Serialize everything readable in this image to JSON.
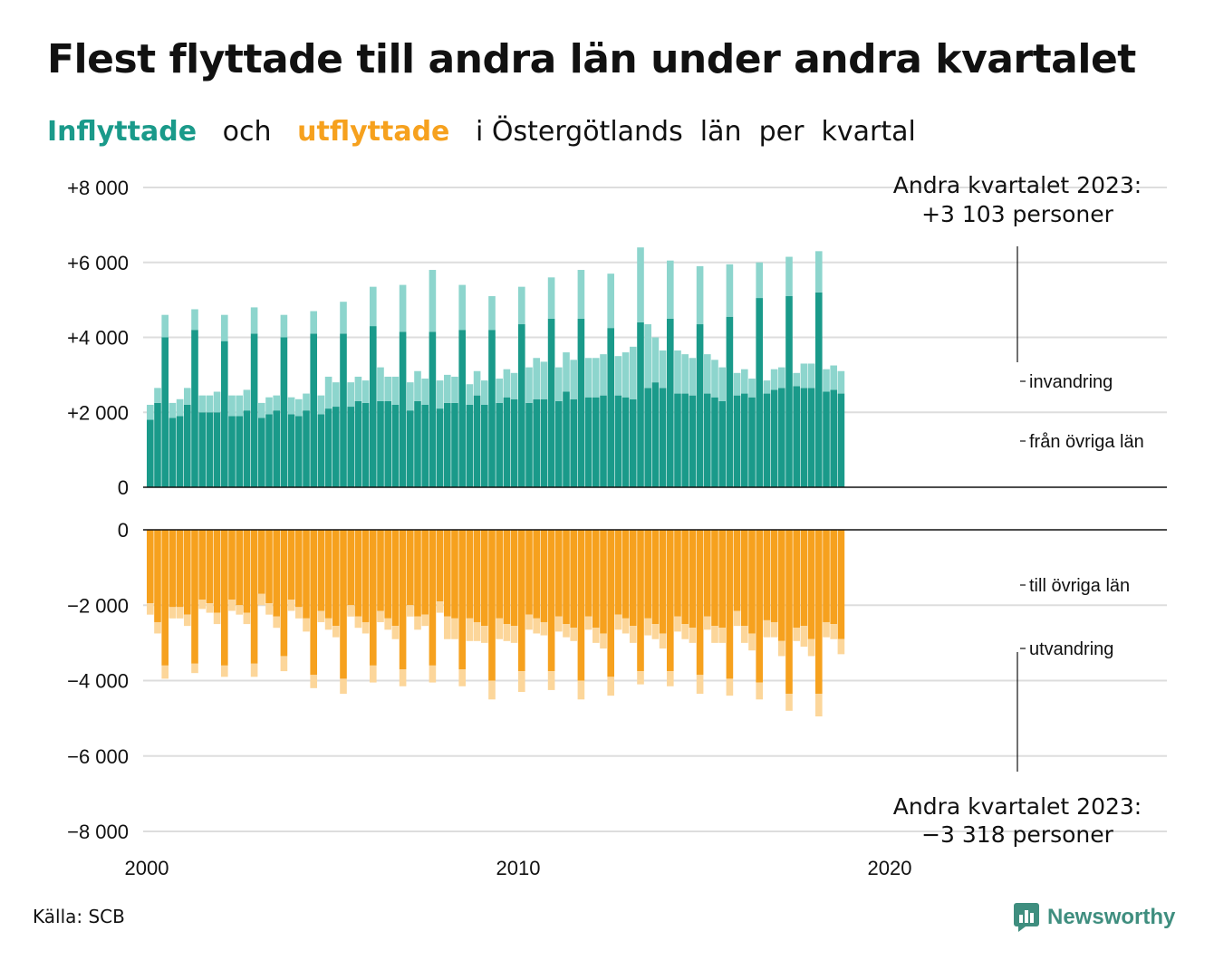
{
  "title": "Flest flyttade till andra län under andra kvartalet",
  "subtitle": {
    "in_word": "Inflyttade",
    "and": "och",
    "out_word": "utflyttade",
    "rest": "i Östergötlands  län  per  kvartal"
  },
  "colors": {
    "in_domestic": "#1a9a8a",
    "in_immigration": "#8dd5cd",
    "out_domestic": "#f6a11e",
    "out_emigration": "#fcd69a",
    "grid": "#dddddd"
  },
  "source": "Källa: SCB",
  "logo": {
    "icon": "newsworthy-chart-icon",
    "text": "Newsworthy"
  },
  "chart_data": {
    "type": "bar",
    "stacked": true,
    "grid": true,
    "x_start": "2000 Q1",
    "x_ticks": [
      "2000",
      "2010",
      "2020"
    ],
    "y_ticks_top": [
      "+8 000",
      "+6 000",
      "+4 000",
      "+2 000",
      "0"
    ],
    "y_ticks_bottom": [
      "0",
      "−2 000",
      "−4 000",
      "−6 000",
      "−8 000"
    ],
    "ylim_top": [
      0,
      8000
    ],
    "ylim_bottom": [
      -8000,
      0
    ],
    "segment_labels": {
      "in_immigration": "invandring",
      "in_domestic": "från övriga län",
      "out_domestic": "till övriga län",
      "out_emigration": "utvandring"
    },
    "annotation_top": [
      "Andra kvartalet 2023:",
      "+3 103 personer"
    ],
    "annotation_bottom": [
      "Andra kvartalet 2023:",
      "−3 318 personer"
    ],
    "in_domestic": [
      1800,
      2250,
      4000,
      1850,
      1900,
      2200,
      4200,
      2000,
      2000,
      2000,
      3900,
      1900,
      1900,
      2050,
      4100,
      1850,
      1950,
      2050,
      4000,
      1950,
      1900,
      2050,
      4100,
      1950,
      2100,
      2150,
      4100,
      2150,
      2300,
      2250,
      4300,
      2300,
      2300,
      2200,
      4150,
      2050,
      2300,
      2200,
      4150,
      2100,
      2250,
      2250,
      4200,
      2200,
      2450,
      2200,
      4200,
      2250,
      2400,
      2350,
      4350,
      2250,
      2350,
      2350,
      4500,
      2300,
      2550,
      2350,
      4500,
      2400,
      2400,
      2450,
      4250,
      2450,
      2400,
      2350,
      4400,
      2650,
      2800,
      2650,
      4500,
      2500,
      2500,
      2450,
      4350,
      2500,
      2400,
      2300,
      4550,
      2450,
      2500,
      2400,
      5050,
      2500,
      2600,
      2650,
      5100,
      2700,
      2650,
      2650,
      5200,
      2550,
      2600,
      2500
    ],
    "in_immigration": [
      400,
      400,
      600,
      400,
      450,
      450,
      550,
      450,
      450,
      550,
      700,
      550,
      550,
      550,
      700,
      400,
      450,
      400,
      600,
      450,
      450,
      450,
      600,
      500,
      850,
      650,
      850,
      650,
      650,
      600,
      1050,
      900,
      650,
      750,
      1250,
      750,
      800,
      700,
      1650,
      750,
      750,
      700,
      1200,
      550,
      650,
      650,
      900,
      650,
      750,
      700,
      1000,
      950,
      1100,
      1000,
      1100,
      900,
      1050,
      1050,
      1300,
      1050,
      1050,
      1100,
      1450,
      1050,
      1200,
      1400,
      2000,
      1700,
      1200,
      1000,
      1550,
      1150,
      1050,
      1000,
      1550,
      1050,
      1000,
      900,
      1400,
      600,
      650,
      500,
      950,
      350,
      550,
      550,
      1050,
      350,
      650,
      650,
      1100,
      600,
      650,
      600
    ],
    "out_domestic": [
      1950,
      2450,
      3600,
      2050,
      2050,
      2250,
      3550,
      1850,
      1950,
      2200,
      3600,
      1850,
      2000,
      2200,
      3550,
      1700,
      1950,
      2300,
      3350,
      1850,
      2050,
      2350,
      3850,
      2150,
      2350,
      2550,
      3950,
      2000,
      2300,
      2450,
      3600,
      2150,
      2350,
      2550,
      3700,
      2000,
      2300,
      2250,
      3600,
      1900,
      2300,
      2350,
      3700,
      2350,
      2450,
      2550,
      4000,
      2350,
      2500,
      2550,
      3750,
      2250,
      2350,
      2450,
      3750,
      2300,
      2500,
      2600,
      4000,
      2300,
      2600,
      2750,
      3900,
      2250,
      2350,
      2550,
      3750,
      2350,
      2500,
      2750,
      3750,
      2300,
      2500,
      2600,
      3850,
      2300,
      2550,
      2600,
      3950,
      2150,
      2550,
      2750,
      4050,
      2400,
      2450,
      2950,
      4350,
      2600,
      2550,
      2900,
      4350,
      2450,
      2500,
      2900
    ],
    "out_emigration": [
      300,
      300,
      350,
      300,
      300,
      300,
      250,
      250,
      250,
      300,
      300,
      300,
      250,
      300,
      350,
      300,
      300,
      300,
      400,
      300,
      300,
      350,
      350,
      300,
      300,
      300,
      400,
      300,
      300,
      300,
      450,
      300,
      300,
      350,
      450,
      300,
      350,
      300,
      450,
      300,
      600,
      550,
      450,
      600,
      500,
      450,
      500,
      550,
      450,
      450,
      550,
      400,
      400,
      350,
      500,
      400,
      350,
      350,
      500,
      350,
      400,
      400,
      500,
      400,
      400,
      450,
      350,
      450,
      400,
      400,
      400,
      400,
      400,
      400,
      500,
      350,
      450,
      400,
      450,
      400,
      450,
      450,
      450,
      450,
      400,
      400,
      450,
      350,
      550,
      450,
      600,
      400,
      400,
      400
    ]
  }
}
